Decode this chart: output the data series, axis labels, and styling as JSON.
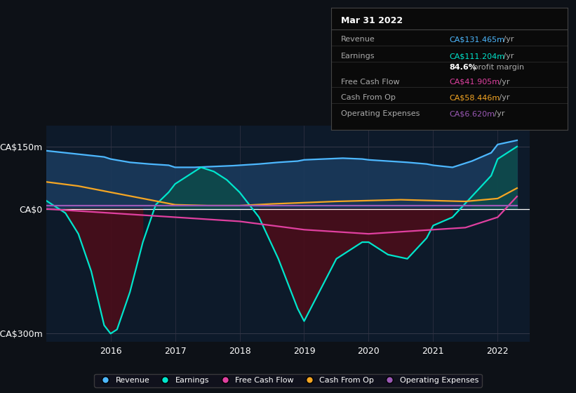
{
  "background_color": "#0d1117",
  "plot_bg_color": "#0d1a2a",
  "ylabel_150": "CA$150m",
  "ylabel_0": "CA$0",
  "ylabel_neg300": "-CA$300m",
  "ylim": [
    -320,
    200
  ],
  "xlim": [
    2015.0,
    2022.5
  ],
  "colors": {
    "revenue": "#4db8ff",
    "earnings": "#00e5cc",
    "free_cash_flow": "#e040a0",
    "cash_from_op": "#f5a623",
    "operating_expenses": "#9b59b6",
    "revenue_fill": "#1a3a5c",
    "earnings_fill_pos": "#0d4a4a",
    "earnings_fill_neg": "#4a0d1a",
    "zero_line": "#ffffff"
  },
  "legend": [
    {
      "label": "Revenue",
      "color": "#4db8ff"
    },
    {
      "label": "Earnings",
      "color": "#00e5cc"
    },
    {
      "label": "Free Cash Flow",
      "color": "#e040a0"
    },
    {
      "label": "Cash From Op",
      "color": "#f5a623"
    },
    {
      "label": "Operating Expenses",
      "color": "#9b59b6"
    }
  ],
  "info_box": {
    "title": "Mar 31 2022",
    "rows": [
      {
        "label": "Revenue",
        "value": "CA$131.465m",
        "suffix": " /yr",
        "value_color": "#4db8ff"
      },
      {
        "label": "Earnings",
        "value": "CA$111.204m",
        "suffix": " /yr",
        "value_color": "#00e5cc"
      },
      {
        "label": "",
        "bold": "84.6%",
        "rest": " profit margin",
        "value_color": "#ffffff"
      },
      {
        "label": "Free Cash Flow",
        "value": "CA$41.905m",
        "suffix": " /yr",
        "value_color": "#e040a0"
      },
      {
        "label": "Cash From Op",
        "value": "CA$58.446m",
        "suffix": " /yr",
        "value_color": "#f5a623"
      },
      {
        "label": "Operating Expenses",
        "value": "CA$6.620m",
        "suffix": " /yr",
        "value_color": "#9b59b6"
      }
    ]
  },
  "revenue": {
    "x": [
      2015.0,
      2015.3,
      2015.6,
      2015.9,
      2016.0,
      2016.3,
      2016.6,
      2016.9,
      2017.0,
      2017.3,
      2017.6,
      2017.9,
      2018.0,
      2018.3,
      2018.6,
      2018.9,
      2019.0,
      2019.3,
      2019.6,
      2019.9,
      2020.0,
      2020.3,
      2020.6,
      2020.9,
      2021.0,
      2021.3,
      2021.6,
      2021.9,
      2022.0,
      2022.3
    ],
    "y": [
      140,
      135,
      130,
      125,
      120,
      112,
      108,
      105,
      100,
      100,
      102,
      104,
      105,
      108,
      112,
      115,
      118,
      120,
      122,
      120,
      118,
      115,
      112,
      108,
      105,
      100,
      115,
      135,
      155,
      165
    ]
  },
  "earnings": {
    "x": [
      2015.0,
      2015.3,
      2015.5,
      2015.7,
      2015.9,
      2016.0,
      2016.1,
      2016.3,
      2016.5,
      2016.7,
      2016.9,
      2017.0,
      2017.2,
      2017.4,
      2017.6,
      2017.8,
      2018.0,
      2018.3,
      2018.6,
      2018.9,
      2019.0,
      2019.3,
      2019.5,
      2019.7,
      2019.9,
      2020.0,
      2020.3,
      2020.6,
      2020.9,
      2021.0,
      2021.3,
      2021.6,
      2021.9,
      2022.0,
      2022.3
    ],
    "y": [
      20,
      -10,
      -60,
      -150,
      -280,
      -300,
      -290,
      -200,
      -80,
      10,
      40,
      60,
      80,
      100,
      90,
      70,
      40,
      -20,
      -120,
      -240,
      -270,
      -180,
      -120,
      -100,
      -80,
      -80,
      -110,
      -120,
      -70,
      -40,
      -20,
      30,
      80,
      120,
      150
    ]
  },
  "free_cash_flow": {
    "x": [
      2015.0,
      2015.5,
      2016.0,
      2016.5,
      2017.0,
      2017.5,
      2018.0,
      2018.5,
      2019.0,
      2019.5,
      2020.0,
      2020.5,
      2021.0,
      2021.5,
      2022.0,
      2022.3
    ],
    "y": [
      0,
      -5,
      -10,
      -15,
      -20,
      -25,
      -30,
      -40,
      -50,
      -55,
      -60,
      -55,
      -50,
      -45,
      -20,
      30
    ]
  },
  "cash_from_op": {
    "x": [
      2015.0,
      2015.5,
      2016.0,
      2016.5,
      2017.0,
      2017.5,
      2018.0,
      2018.5,
      2019.0,
      2019.5,
      2020.0,
      2020.5,
      2021.0,
      2021.5,
      2022.0,
      2022.3
    ],
    "y": [
      65,
      55,
      40,
      25,
      10,
      8,
      8,
      12,
      15,
      18,
      20,
      22,
      20,
      18,
      25,
      50
    ]
  },
  "operating_expenses": {
    "x": [
      2015.0,
      2015.5,
      2016.0,
      2016.5,
      2017.0,
      2017.5,
      2018.0,
      2018.5,
      2019.0,
      2019.5,
      2020.0,
      2020.5,
      2021.0,
      2021.5,
      2022.0,
      2022.3
    ],
    "y": [
      8,
      8,
      8,
      8,
      8,
      8,
      8,
      8,
      8,
      8,
      8,
      8,
      8,
      8,
      8,
      8
    ]
  }
}
